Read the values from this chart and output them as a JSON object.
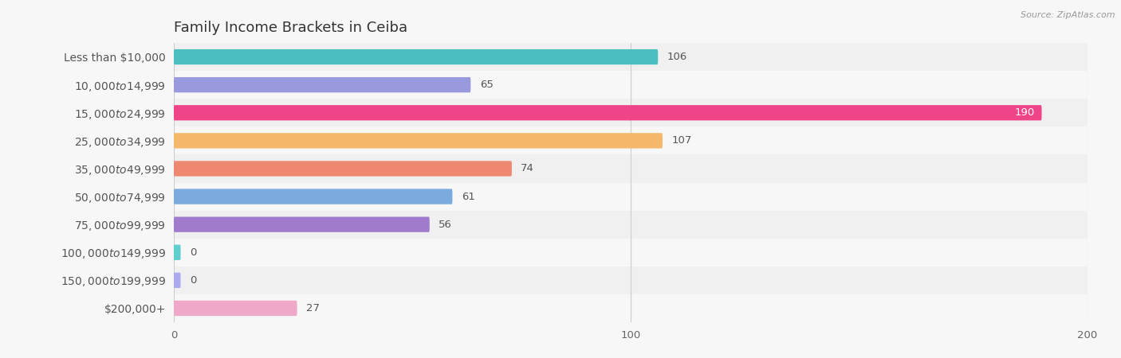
{
  "title": "Family Income Brackets in Ceiba",
  "source": "Source: ZipAtlas.com",
  "categories": [
    "Less than $10,000",
    "$10,000 to $14,999",
    "$15,000 to $24,999",
    "$25,000 to $34,999",
    "$35,000 to $49,999",
    "$50,000 to $74,999",
    "$75,000 to $99,999",
    "$100,000 to $149,999",
    "$150,000 to $199,999",
    "$200,000+"
  ],
  "values": [
    106,
    65,
    190,
    107,
    74,
    61,
    56,
    0,
    0,
    27
  ],
  "bar_colors": [
    "#4BBFBF",
    "#9999DD",
    "#F04488",
    "#F5B86A",
    "#EE8870",
    "#7AAADE",
    "#A07ACC",
    "#5ECECE",
    "#AAAAEE",
    "#F0A8C8"
  ],
  "xlim": [
    0,
    200
  ],
  "xticks": [
    0,
    100,
    200
  ],
  "background_color": "#f7f7f7",
  "bar_bg_color": "#e8e8e8",
  "row_bg_colors": [
    "#f0f0f0",
    "#f7f7f7"
  ],
  "title_fontsize": 13,
  "label_fontsize": 10,
  "value_fontsize": 9.5,
  "bar_height": 0.55
}
